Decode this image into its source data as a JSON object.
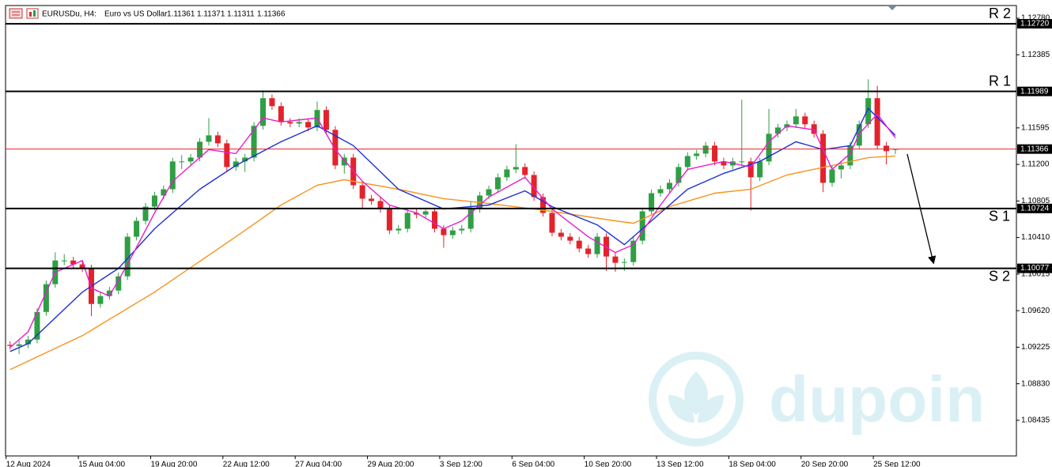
{
  "chart_data": {
    "type": "candlestick",
    "symbol": "EURUSDu, H4:",
    "description": "Euro vs US Dollar",
    "quote": [
      1.11361,
      1.11371,
      1.11311,
      1.11366
    ],
    "watermark": "dupoin",
    "up_color": "#2f9e44",
    "down_color": "#e3222b",
    "xlim": [
      -0.5,
      111.4
    ],
    "ylim": [
      1.0805,
      1.12917
    ],
    "xticks": [
      {
        "value": 0,
        "label": "12 Aug 2024"
      },
      {
        "value": 8,
        "label": "15 Aug 04:00"
      },
      {
        "value": 16,
        "label": "19 Aug 20:00"
      },
      {
        "value": 24,
        "label": "22 Aug 12:00"
      },
      {
        "value": 32,
        "label": "27 Aug 04:00"
      },
      {
        "value": 40,
        "label": "29 Aug 20:00"
      },
      {
        "value": 48,
        "label": "3 Sep 12:00"
      },
      {
        "value": 56,
        "label": "6 Sep 04:00"
      },
      {
        "value": 64,
        "label": "10 Sep 20:00"
      },
      {
        "value": 72,
        "label": "13 Sep 12:00"
      },
      {
        "value": 80,
        "label": "18 Sep 04:00"
      },
      {
        "value": 88,
        "label": "20 Sep 20:00"
      },
      {
        "value": 96,
        "label": "25 Sep 12:00"
      }
    ],
    "yticks": [
      {
        "value": 1.1278,
        "label": "1.12780"
      },
      1.12385,
      1.11595,
      {
        "value": 1.112,
        "label": "1.11200"
      },
      1.10805,
      {
        "value": 1.1041,
        "label": "1.10410"
      },
      1.10015,
      {
        "value": 1.0962,
        "label": "1.09620"
      },
      1.09225,
      {
        "value": 1.0883,
        "label": "1.08830"
      },
      1.08435
    ],
    "open": [
      1.0925,
      1.09239,
      1.09256,
      1.09307,
      1.09606,
      1.09906,
      1.10162,
      1.10162,
      1.1012,
      1.10077,
      1.09692,
      1.09777,
      1.09837,
      1.09991,
      1.10419,
      1.1059,
      1.10744,
      1.10864,
      1.10932,
      1.11232,
      1.11232,
      1.11274,
      1.11445,
      1.11514,
      1.11428,
      1.11172,
      1.11232,
      1.11274,
      1.11617,
      1.11916,
      1.1183,
      1.11659,
      1.11642,
      1.11659,
      1.11599,
      1.11788,
      1.11574,
      1.11189,
      1.11274,
      1.10975,
      1.1083,
      1.10804,
      1.10718,
      1.10487,
      1.10505,
      1.10676,
      1.10658,
      1.10693,
      1.10505,
      1.10436,
      1.10487,
      1.10505,
      1.10718,
      1.10864,
      1.10932,
      1.11061,
      1.11146,
      1.11172,
      1.11086,
      1.10847,
      1.10676,
      1.10462,
      1.10419,
      1.10376,
      1.10291,
      1.10231,
      1.10419,
      1.10205,
      1.10137,
      1.10145,
      1.10376,
      1.10693,
      1.10889,
      1.10932,
      1.11001,
      1.11172,
      1.11291,
      1.11317,
      1.11403,
      1.11232,
      1.11189,
      1.11232,
      1.11232,
      1.11061,
      1.11232,
      1.11531,
      1.11599,
      1.11634,
      1.11719,
      1.11634,
      1.11531,
      1.11001,
      1.11146,
      1.11189,
      1.11403,
      1.11634,
      1.11916,
      1.11403,
      1.11361
    ],
    "high": [
      1.0929,
      1.09296,
      1.09347,
      1.09646,
      1.09946,
      1.1025,
      1.1023,
      1.10202,
      1.1016,
      1.10117,
      1.09817,
      1.09877,
      1.10031,
      1.10459,
      1.1063,
      1.10784,
      1.10904,
      1.10972,
      1.11272,
      1.113,
      1.11314,
      1.11485,
      1.117,
      1.11554,
      1.11468,
      1.11272,
      1.11314,
      1.11657,
      1.12,
      1.11956,
      1.1187,
      1.11699,
      1.11699,
      1.11699,
      1.1188,
      1.11828,
      1.11614,
      1.11314,
      1.11314,
      1.11015,
      1.1087,
      1.10844,
      1.10758,
      1.10545,
      1.10716,
      1.10716,
      1.10733,
      1.10733,
      1.10545,
      1.10527,
      1.10545,
      1.108,
      1.10904,
      1.10972,
      1.11101,
      1.11186,
      1.1142,
      1.11212,
      1.11126,
      1.10887,
      1.10716,
      1.10502,
      1.10459,
      1.10416,
      1.10331,
      1.10459,
      1.10459,
      1.10245,
      1.10185,
      1.10416,
      1.10733,
      1.10929,
      1.10972,
      1.11041,
      1.11212,
      1.11331,
      1.11357,
      1.11443,
      1.11443,
      1.11272,
      1.11272,
      1.119,
      1.11272,
      1.11272,
      1.118,
      1.11639,
      1.11674,
      1.118,
      1.11759,
      1.11674,
      1.11571,
      1.11186,
      1.11229,
      1.11443,
      1.11674,
      1.1212,
      1.1205,
      1.11443,
      1.11371
    ],
    "low": [
      1.09199,
      1.0915,
      1.09216,
      1.09267,
      1.09566,
      1.09866,
      1.1011,
      1.1008,
      1.10037,
      1.0956,
      1.09652,
      1.09737,
      1.09797,
      1.09951,
      1.10379,
      1.1055,
      1.10704,
      1.10824,
      1.10892,
      1.1115,
      1.11192,
      1.11234,
      1.11405,
      1.11388,
      1.11132,
      1.11132,
      1.1112,
      1.11234,
      1.11577,
      1.1179,
      1.11619,
      1.11602,
      1.11602,
      1.11559,
      1.11559,
      1.11534,
      1.11149,
      1.111,
      1.10935,
      1.1072,
      1.10764,
      1.10678,
      1.10447,
      1.10447,
      1.10465,
      1.10618,
      1.10618,
      1.10465,
      1.103,
      1.10396,
      1.10447,
      1.10465,
      1.10678,
      1.10824,
      1.10892,
      1.11021,
      1.11106,
      1.11046,
      1.10807,
      1.10636,
      1.10422,
      1.10379,
      1.10336,
      1.10251,
      1.10191,
      1.10191,
      1.1005,
      1.1004,
      1.1005,
      1.10105,
      1.10336,
      1.10653,
      1.10849,
      1.10892,
      1.10961,
      1.11132,
      1.11251,
      1.11277,
      1.11192,
      1.11149,
      1.11149,
      1.1118,
      1.107,
      1.11021,
      1.11192,
      1.11491,
      1.11559,
      1.11594,
      1.11594,
      1.11491,
      1.109,
      1.10961,
      1.1105,
      1.11149,
      1.11363,
      1.11594,
      1.11363,
      1.112,
      1.11311
    ],
    "close": [
      1.09239,
      1.09256,
      1.09307,
      1.09606,
      1.09906,
      1.10162,
      1.10162,
      1.1012,
      1.10077,
      1.09692,
      1.09777,
      1.09837,
      1.09991,
      1.10419,
      1.1059,
      1.10744,
      1.10864,
      1.10932,
      1.11232,
      1.11232,
      1.11274,
      1.11445,
      1.11514,
      1.11428,
      1.11172,
      1.11232,
      1.11274,
      1.11617,
      1.11916,
      1.1183,
      1.11659,
      1.11642,
      1.11659,
      1.11599,
      1.11788,
      1.11574,
      1.11189,
      1.11274,
      1.10975,
      1.1083,
      1.10804,
      1.10718,
      1.10487,
      1.10505,
      1.10676,
      1.10658,
      1.10693,
      1.10505,
      1.10436,
      1.10487,
      1.10505,
      1.10718,
      1.10864,
      1.10932,
      1.11061,
      1.11146,
      1.11172,
      1.11086,
      1.10847,
      1.10676,
      1.10462,
      1.10419,
      1.10376,
      1.10291,
      1.10231,
      1.10419,
      1.10205,
      1.10137,
      1.10145,
      1.10376,
      1.10693,
      1.10889,
      1.10932,
      1.11001,
      1.11172,
      1.11291,
      1.11317,
      1.11403,
      1.11232,
      1.11189,
      1.11232,
      1.11232,
      1.11061,
      1.11232,
      1.11531,
      1.11599,
      1.11634,
      1.11719,
      1.11634,
      1.11531,
      1.11001,
      1.11146,
      1.11189,
      1.11403,
      1.11634,
      1.11916,
      1.11403,
      1.11343,
      1.11366
    ],
    "moving_averages": [
      {
        "color": "#f7931e",
        "x": [
          0,
          8,
          16,
          25,
          30,
          34,
          37,
          43,
          48,
          53,
          60,
          67,
          69,
          73,
          78,
          82,
          86,
          91,
          95,
          98
        ],
        "values": [
          1.08982,
          1.0935,
          1.0982,
          1.10419,
          1.10761,
          1.10975,
          1.11035,
          1.10932,
          1.1083,
          1.10778,
          1.10693,
          1.1059,
          1.10564,
          1.10744,
          1.10889,
          1.10932,
          1.11086,
          1.11189,
          1.11274,
          1.11291
        ]
      },
      {
        "color": "#1f2fd6",
        "x": [
          0,
          2,
          8,
          12,
          16,
          21,
          25,
          30,
          34,
          38,
          43,
          48,
          53,
          57,
          60,
          65,
          68,
          71,
          75,
          79,
          83,
          87,
          90,
          93,
          95,
          98
        ],
        "values": [
          1.09179,
          1.09264,
          1.0982,
          1.10077,
          1.10505,
          1.10932,
          1.11189,
          1.11445,
          1.11617,
          1.11403,
          1.10932,
          1.10718,
          1.10761,
          1.10915,
          1.10744,
          1.10547,
          1.10333,
          1.1059,
          1.10932,
          1.11103,
          1.11232,
          1.11445,
          1.1136,
          1.11403,
          1.11805,
          1.11514
        ]
      },
      {
        "color": "#e81ccf",
        "x": [
          0,
          2,
          5,
          8,
          9,
          11,
          13,
          16,
          18,
          22,
          25,
          28,
          30,
          34,
          36,
          39,
          42,
          45,
          48,
          50,
          53,
          57,
          60,
          64,
          67,
          69,
          72,
          75,
          79,
          82,
          84,
          86,
          89,
          91,
          93,
          94,
          96,
          98
        ],
        "values": [
          1.09221,
          1.09392,
          1.10034,
          1.10162,
          1.09863,
          1.09777,
          1.1012,
          1.10676,
          1.11018,
          1.1136,
          1.11317,
          1.11702,
          1.11659,
          1.11702,
          1.1136,
          1.11018,
          1.10761,
          1.10676,
          1.10505,
          1.1059,
          1.10847,
          1.11061,
          1.10718,
          1.10419,
          1.10248,
          1.10333,
          1.10761,
          1.11146,
          1.11232,
          1.11172,
          1.11445,
          1.11617,
          1.11574,
          1.11146,
          1.11317,
          1.11531,
          1.11745,
          1.11488
        ]
      }
    ],
    "levels": [
      {
        "name": "R 2",
        "price": {
          "value": 1.1272,
          "label": "1.12720"
        }
      },
      {
        "name": "R 1",
        "price": {
          "value": 1.11989,
          "label": "1.11989"
        }
      },
      {
        "name": "S 1",
        "price": {
          "value": 1.10724,
          "label": "1.10724"
        }
      },
      {
        "name": "S 2",
        "price": {
          "value": 1.10077,
          "label": "1.10077"
        }
      }
    ],
    "level_color": "#000000",
    "current_price": 1.11366,
    "current_price_color": "#e3222b"
  }
}
